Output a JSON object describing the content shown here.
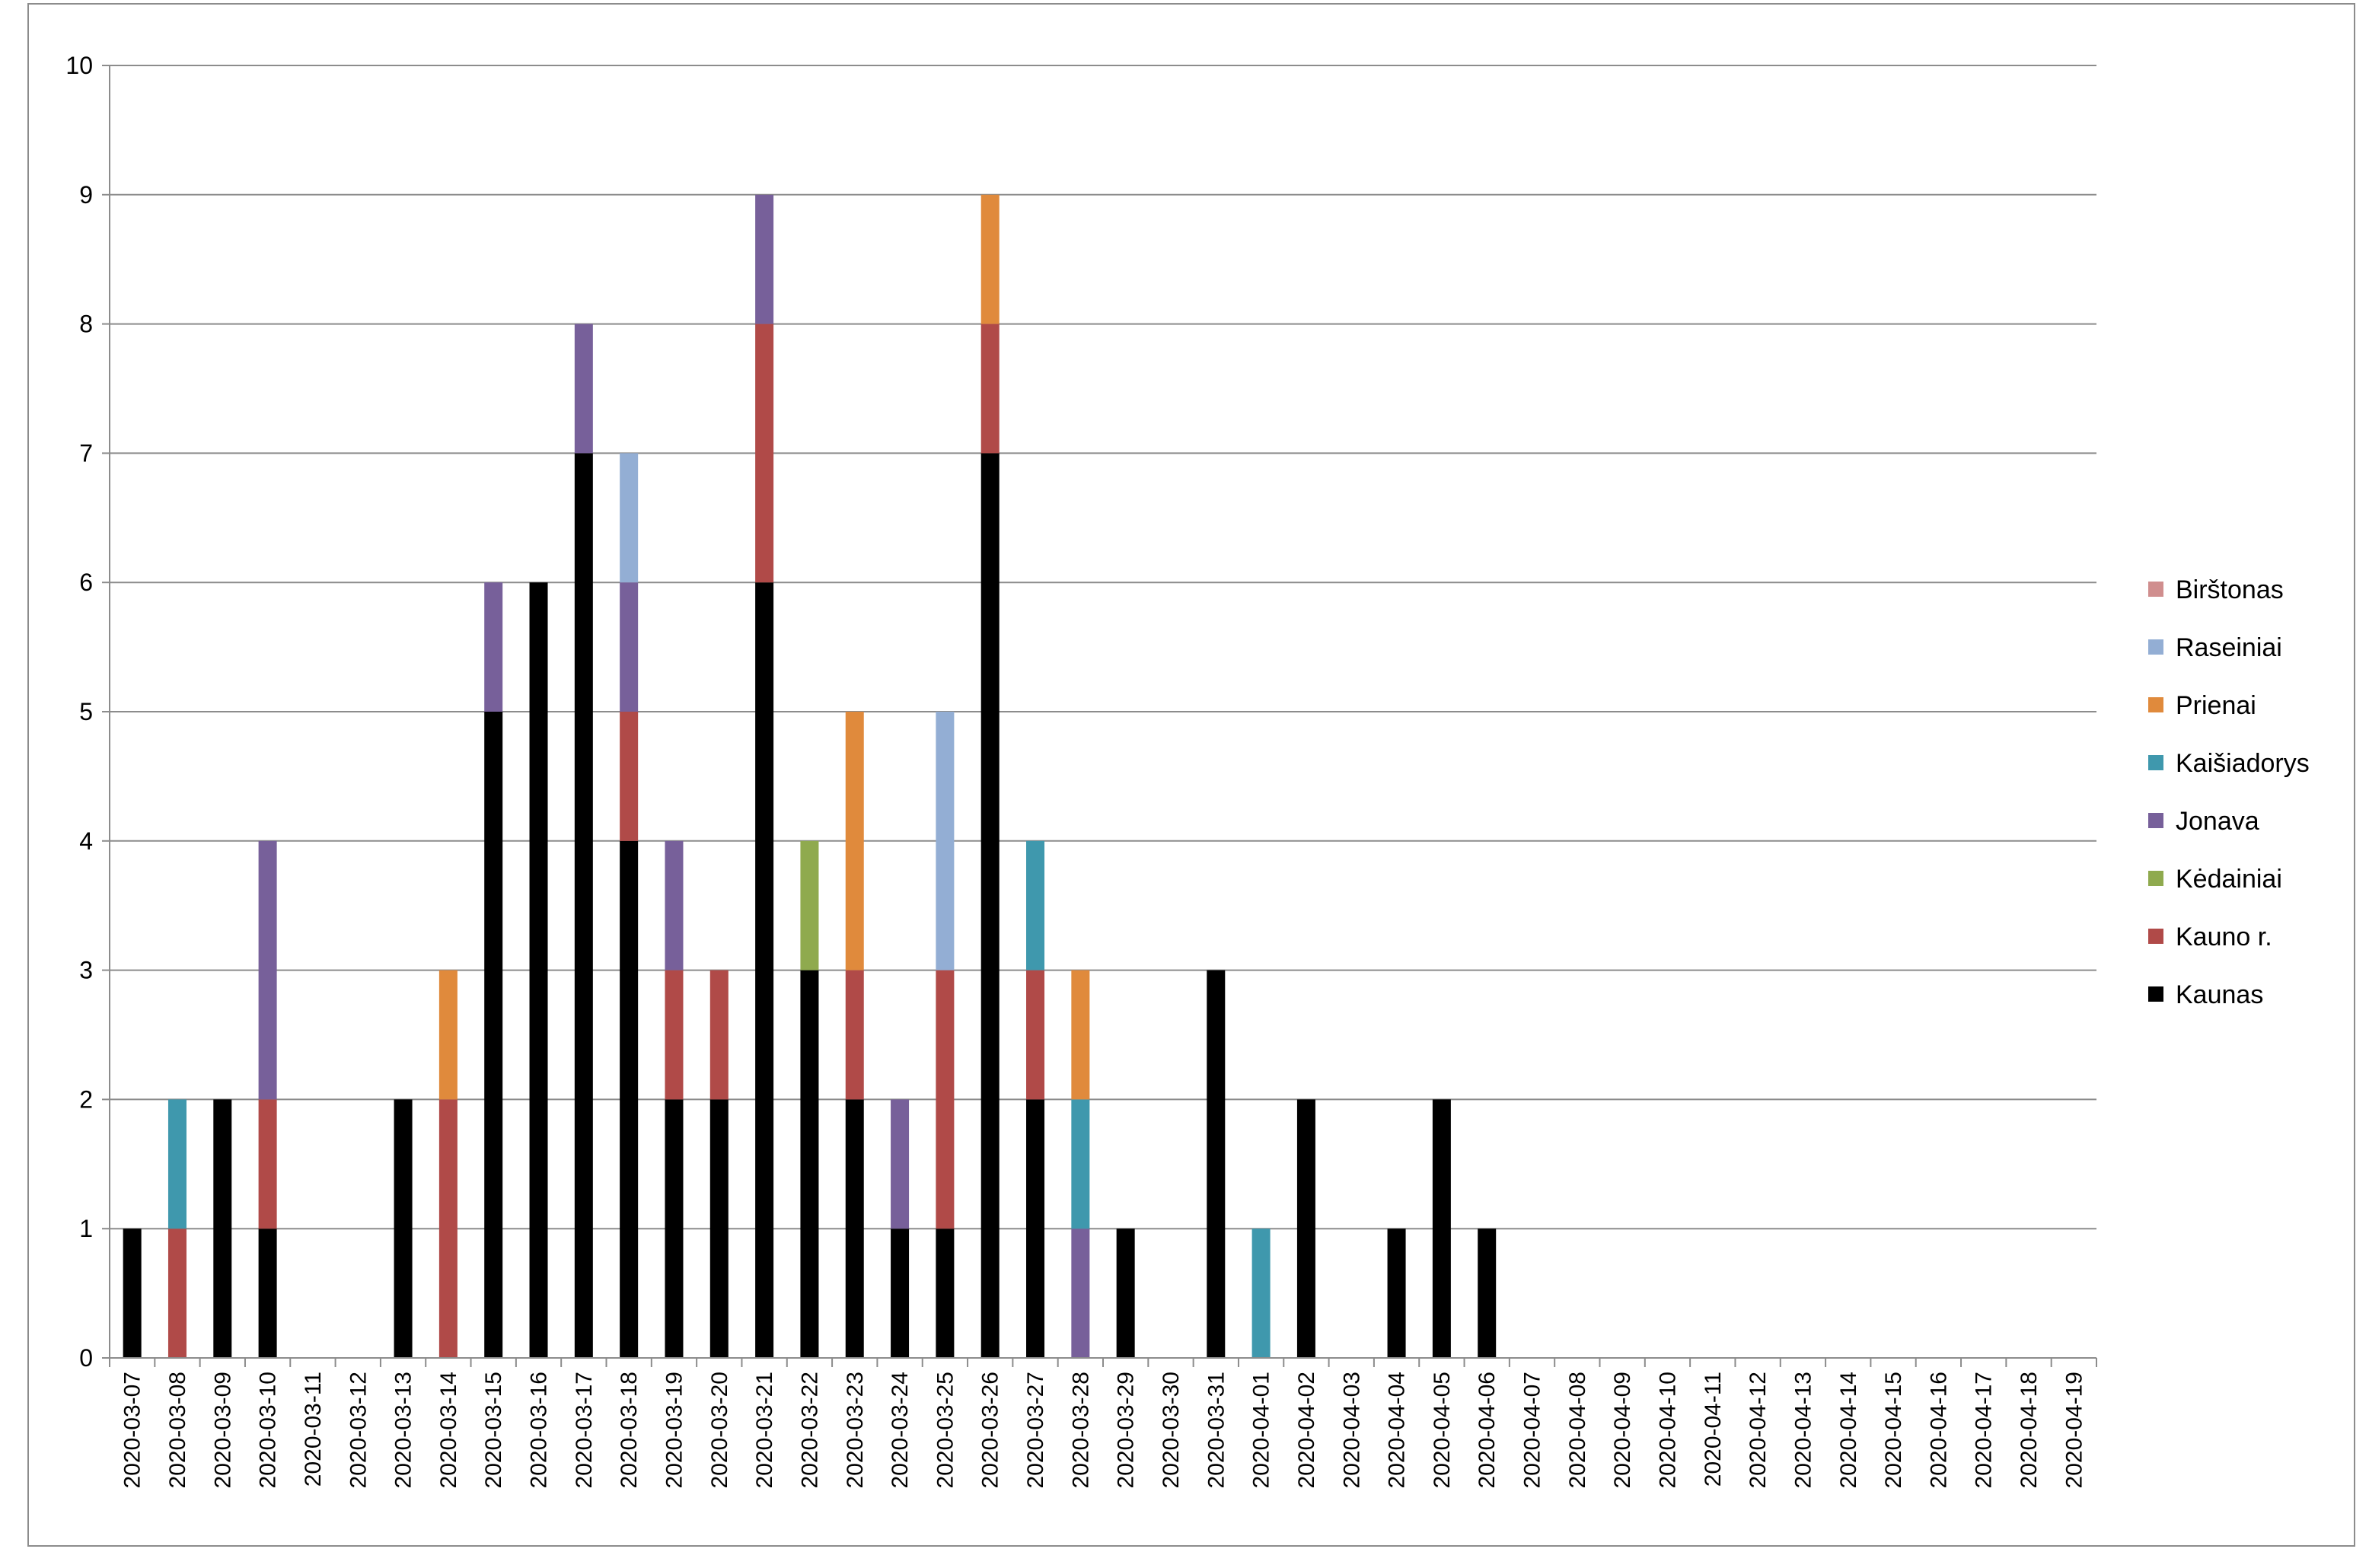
{
  "chart_data": {
    "type": "bar",
    "stacked": true,
    "title": "",
    "xlabel": "",
    "ylabel": "",
    "ylim": [
      0,
      10
    ],
    "yticks": [
      0,
      1,
      2,
      3,
      4,
      5,
      6,
      7,
      8,
      9,
      10
    ],
    "grid": true,
    "legend_position": "right",
    "categories": [
      "2020-03-07",
      "2020-03-08",
      "2020-03-09",
      "2020-03-10",
      "2020-03-11",
      "2020-03-12",
      "2020-03-13",
      "2020-03-14",
      "2020-03-15",
      "2020-03-16",
      "2020-03-17",
      "2020-03-18",
      "2020-03-19",
      "2020-03-20",
      "2020-03-21",
      "2020-03-22",
      "2020-03-23",
      "2020-03-24",
      "2020-03-25",
      "2020-03-26",
      "2020-03-27",
      "2020-03-28",
      "2020-03-29",
      "2020-03-30",
      "2020-03-31",
      "2020-04-01",
      "2020-04-02",
      "2020-04-03",
      "2020-04-04",
      "2020-04-05",
      "2020-04-06",
      "2020-04-07",
      "2020-04-08",
      "2020-04-09",
      "2020-04-10",
      "2020-04-11",
      "2020-04-12",
      "2020-04-13",
      "2020-04-14",
      "2020-04-15",
      "2020-04-16",
      "2020-04-17",
      "2020-04-18",
      "2020-04-19"
    ],
    "series": [
      {
        "name": "Kaunas",
        "color": "#000000",
        "values": [
          1,
          0,
          2,
          1,
          0,
          0,
          2,
          0,
          5,
          6,
          7,
          4,
          2,
          2,
          6,
          3,
          2,
          1,
          1,
          7,
          2,
          0,
          1,
          0,
          3,
          0,
          2,
          0,
          1,
          2,
          1,
          0,
          0,
          0,
          0,
          0,
          0,
          0,
          0,
          0,
          0,
          0,
          0,
          0
        ]
      },
      {
        "name": "Kauno r.",
        "color": "#b04a48",
        "values": [
          0,
          1,
          0,
          1,
          0,
          0,
          0,
          2,
          0,
          0,
          0,
          1,
          1,
          1,
          2,
          0,
          1,
          0,
          2,
          1,
          1,
          0,
          0,
          0,
          0,
          0,
          0,
          0,
          0,
          0,
          0,
          0,
          0,
          0,
          0,
          0,
          0,
          0,
          0,
          0,
          0,
          0,
          0,
          0
        ]
      },
      {
        "name": "Kėdainiai",
        "color": "#8faa4e",
        "values": [
          0,
          0,
          0,
          0,
          0,
          0,
          0,
          0,
          0,
          0,
          0,
          0,
          0,
          0,
          0,
          1,
          0,
          0,
          0,
          0,
          0,
          0,
          0,
          0,
          0,
          0,
          0,
          0,
          0,
          0,
          0,
          0,
          0,
          0,
          0,
          0,
          0,
          0,
          0,
          0,
          0,
          0,
          0,
          0
        ]
      },
      {
        "name": "Jonava",
        "color": "#77609a",
        "values": [
          0,
          0,
          0,
          2,
          0,
          0,
          0,
          0,
          1,
          0,
          1,
          1,
          1,
          0,
          1,
          0,
          0,
          1,
          0,
          0,
          0,
          1,
          0,
          0,
          0,
          0,
          0,
          0,
          0,
          0,
          0,
          0,
          0,
          0,
          0,
          0,
          0,
          0,
          0,
          0,
          0,
          0,
          0,
          0
        ]
      },
      {
        "name": "Kaišiadorys",
        "color": "#3f98ad",
        "values": [
          0,
          1,
          0,
          0,
          0,
          0,
          0,
          0,
          0,
          0,
          0,
          0,
          0,
          0,
          0,
          0,
          0,
          0,
          0,
          0,
          1,
          1,
          0,
          0,
          0,
          1,
          0,
          0,
          0,
          0,
          0,
          0,
          0,
          0,
          0,
          0,
          0,
          0,
          0,
          0,
          0,
          0,
          0,
          0
        ]
      },
      {
        "name": "Prienai",
        "color": "#e08a3c",
        "values": [
          0,
          0,
          0,
          0,
          0,
          0,
          0,
          1,
          0,
          0,
          0,
          0,
          0,
          0,
          0,
          0,
          2,
          0,
          0,
          1,
          0,
          1,
          0,
          0,
          0,
          0,
          0,
          0,
          0,
          0,
          0,
          0,
          0,
          0,
          0,
          0,
          0,
          0,
          0,
          0,
          0,
          0,
          0,
          0
        ]
      },
      {
        "name": "Raseiniai",
        "color": "#93aed4",
        "values": [
          0,
          0,
          0,
          0,
          0,
          0,
          0,
          0,
          0,
          0,
          0,
          1,
          0,
          0,
          0,
          0,
          0,
          0,
          2,
          0,
          0,
          0,
          0,
          0,
          0,
          0,
          0,
          0,
          0,
          0,
          0,
          0,
          0,
          0,
          0,
          0,
          0,
          0,
          0,
          0,
          0,
          0,
          0,
          0
        ]
      },
      {
        "name": "Birštonas",
        "color": "#d08e8e",
        "values": [
          0,
          0,
          0,
          0,
          0,
          0,
          0,
          0,
          0,
          0,
          0,
          0,
          0,
          0,
          0,
          0,
          0,
          0,
          0,
          0,
          0,
          0,
          0,
          0,
          0,
          0,
          0,
          0,
          0,
          0,
          0,
          0,
          0,
          0,
          0,
          0,
          0,
          0,
          0,
          0,
          0,
          0,
          0,
          0
        ]
      }
    ],
    "legend_order": [
      "Birštonas",
      "Raseiniai",
      "Prienai",
      "Kaišiadorys",
      "Jonava",
      "Kėdainiai",
      "Kauno r.",
      "Kaunas"
    ]
  }
}
